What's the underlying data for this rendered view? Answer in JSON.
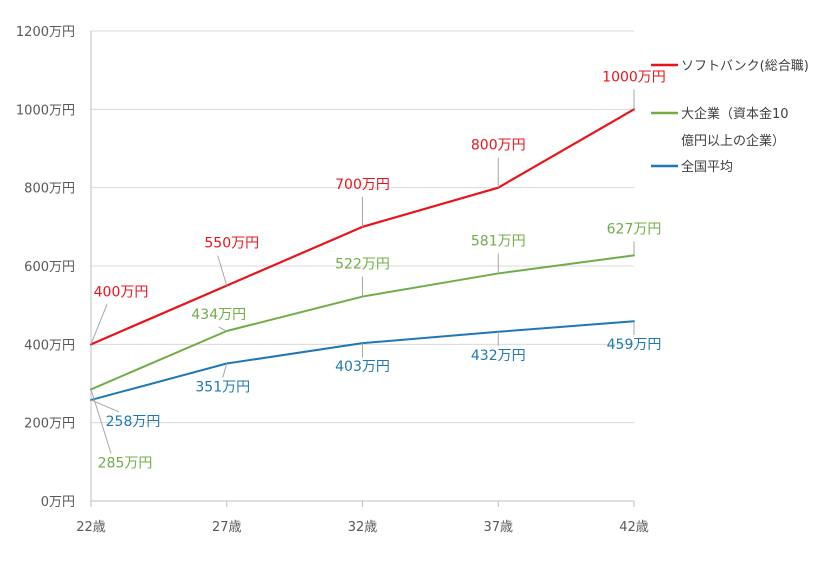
{
  "chart_data": {
    "type": "line",
    "title": "",
    "xlabel": "",
    "ylabel": "",
    "categories": [
      "22歳",
      "27歳",
      "32歳",
      "37歳",
      "42歳"
    ],
    "ylim": [
      0,
      1200
    ],
    "yticks": [
      0,
      200,
      400,
      600,
      800,
      1000,
      1200
    ],
    "ytick_labels": [
      "0万円",
      "200万円",
      "400万円",
      "600万円",
      "800万円",
      "1000万円",
      "1200万円"
    ],
    "grid": true,
    "legend_position": "right",
    "series": [
      {
        "name": "ソフトバンク(総合職)",
        "name_lines": [
          "ソフトバンク(総合職)"
        ],
        "color": "#e8141b",
        "values": [
          400,
          550,
          700,
          800,
          1000
        ],
        "labels": [
          "400万円",
          "550万円",
          "700万円",
          "800万円",
          "1000万円"
        ]
      },
      {
        "name": "大企業（資本金10億円以上の企業）",
        "name_lines": [
          "大企業（資本金10",
          "億円以上の企業）"
        ],
        "color": "#70ad47",
        "values": [
          285,
          434,
          522,
          581,
          627
        ],
        "labels": [
          "285万円",
          "434万円",
          "522万円",
          "581万円",
          "627万円"
        ]
      },
      {
        "name": "全国平均",
        "name_lines": [
          "全国平均"
        ],
        "color": "#1f77b4",
        "values": [
          258,
          351,
          403,
          432,
          459
        ],
        "labels": [
          "258万円",
          "351万円",
          "403万円",
          "432万円",
          "459万円"
        ]
      }
    ]
  }
}
